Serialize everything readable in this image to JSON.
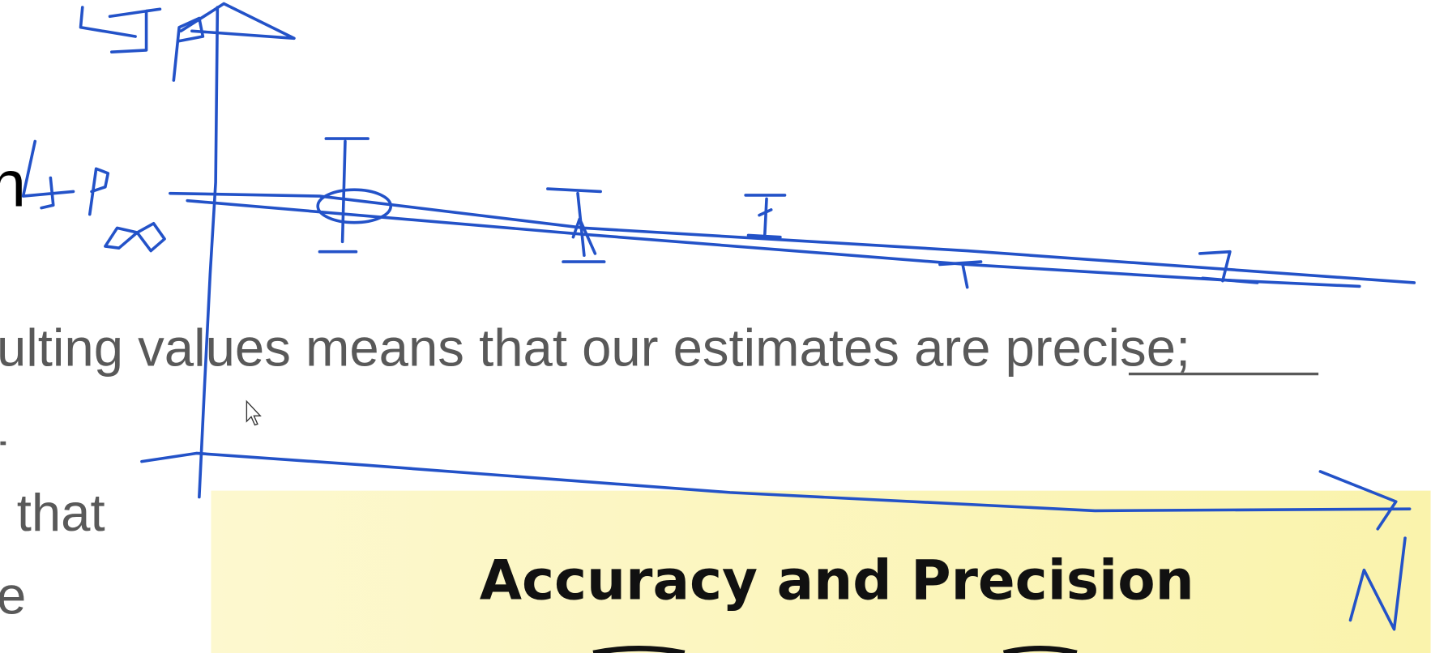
{
  "slide": {
    "heading_fragment": "n",
    "body_lines": [
      {
        "before": "ulting values means that our estimates are ",
        "link": "precise",
        "after": ";"
      },
      {
        "text": "that"
      },
      {
        "text": "e"
      }
    ],
    "banner": {
      "title": "Accuracy and Precision"
    }
  }
}
